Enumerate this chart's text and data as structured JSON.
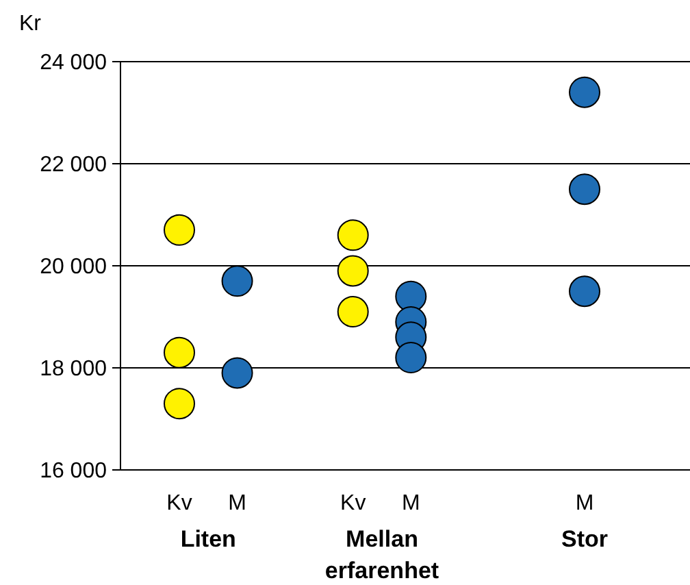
{
  "chart_data": {
    "type": "scatter",
    "ylabel": "Kr",
    "categories": [
      "Kv",
      "M",
      null,
      "Kv",
      "M",
      null,
      null,
      "M"
    ],
    "series": [
      {
        "color": "#fff200",
        "values": [
          20700,
          null,
          null,
          20600,
          null,
          null,
          null,
          null
        ]
      },
      {
        "color": "#fff200",
        "values": [
          18300,
          null,
          null,
          19900,
          null,
          null,
          null,
          null
        ]
      },
      {
        "color": "#fff200",
        "values": [
          17300,
          null,
          null,
          19100,
          null,
          null,
          null,
          null
        ]
      },
      {
        "color": "#1f6db4",
        "values": [
          null,
          19700,
          null,
          null,
          19400,
          null,
          null,
          23400
        ]
      },
      {
        "color": "#1f6db4",
        "values": [
          null,
          17900,
          null,
          null,
          18900,
          null,
          null,
          21500
        ]
      },
      {
        "color": "#1f6db4",
        "values": [
          null,
          null,
          null,
          null,
          18600,
          null,
          null,
          19500
        ]
      },
      {
        "color": "#1f6db4",
        "values": [
          null,
          null,
          null,
          null,
          18200,
          null,
          null,
          null
        ]
      }
    ],
    "ylim": [
      16000,
      24000
    ],
    "yticks": [
      {
        "value": 16000,
        "label": "16 000"
      },
      {
        "value": 18000,
        "label": "18 000"
      },
      {
        "value": 20000,
        "label": "20 000"
      },
      {
        "value": 22000,
        "label": "22 000"
      },
      {
        "value": 24000,
        "label": "24 000"
      }
    ],
    "grid": "y",
    "marker": "circle",
    "annotations": [
      "Liten",
      "Mellan erfarenhet",
      "Stor"
    ]
  }
}
